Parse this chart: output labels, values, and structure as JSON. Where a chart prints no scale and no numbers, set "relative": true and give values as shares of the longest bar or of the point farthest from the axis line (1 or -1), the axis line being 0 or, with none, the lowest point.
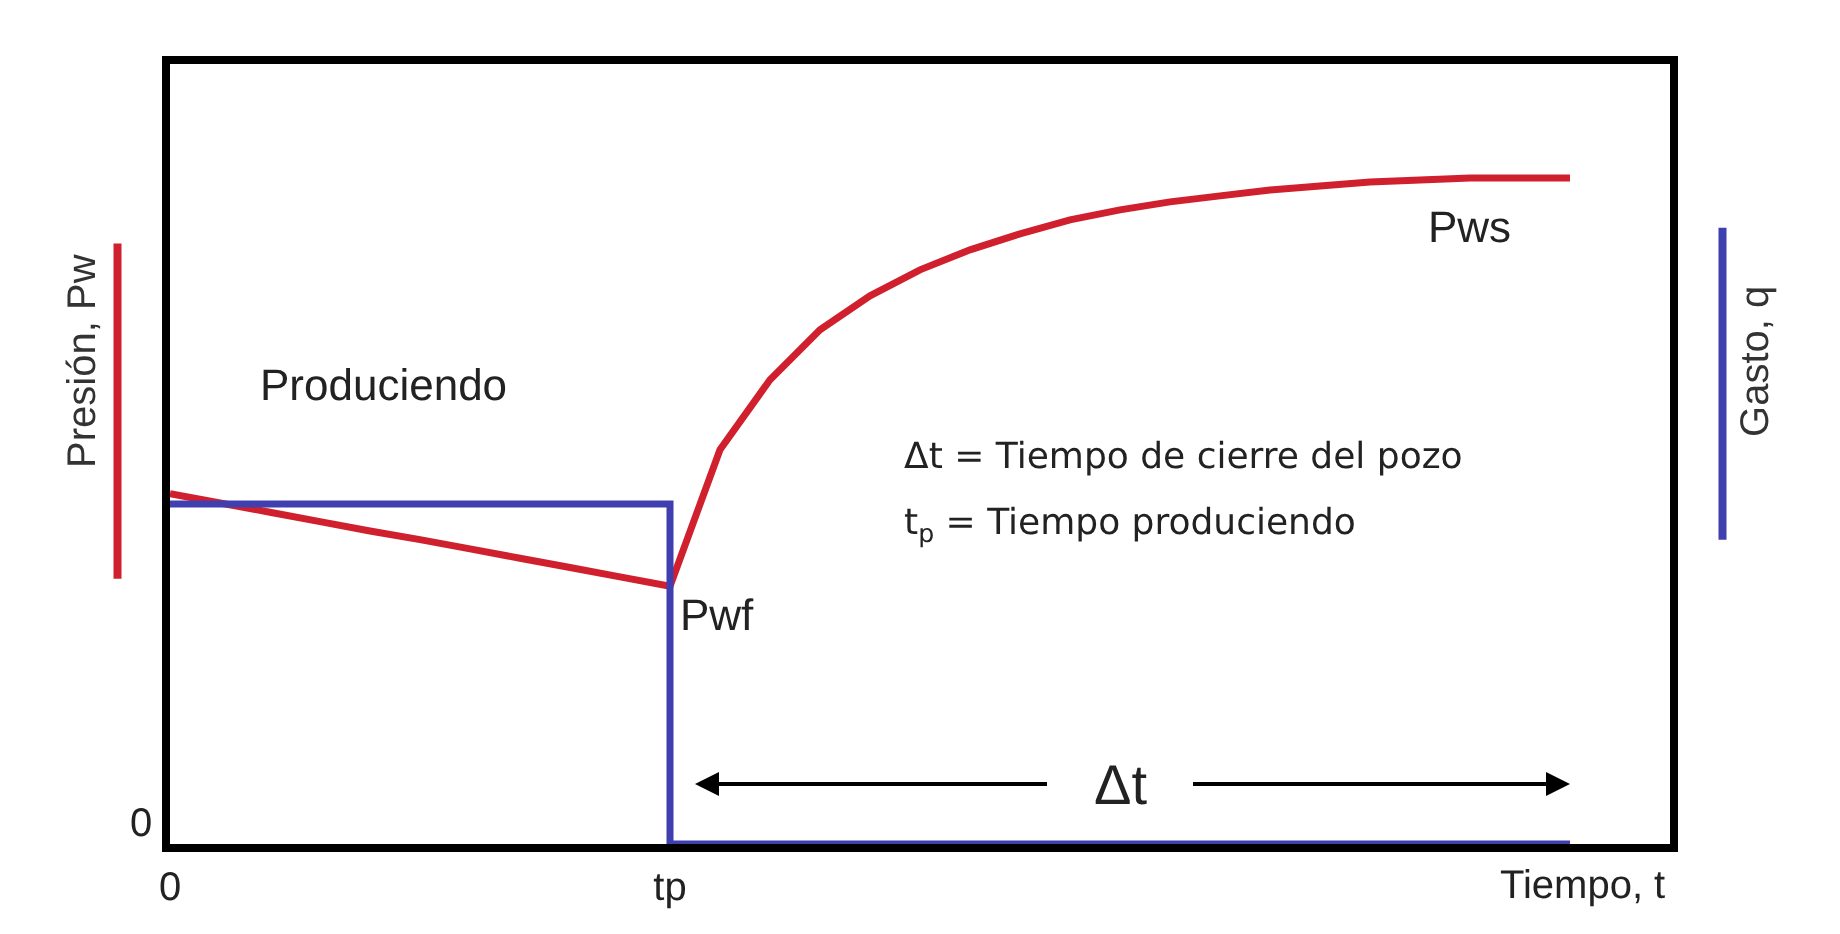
{
  "chart_data": {
    "type": "line",
    "relative": true,
    "xlabel": "Tiempo, t",
    "ylabel": "Presión, Pw",
    "y2label": "Gasto, q",
    "categories": [
      "0",
      null,
      null,
      null,
      null,
      null,
      null,
      null,
      null,
      null,
      "tp",
      null,
      null,
      null,
      null,
      null,
      null,
      null,
      null,
      null,
      null,
      null,
      null,
      null,
      null,
      null,
      null,
      null,
      null,
      null,
      null
    ],
    "series": [
      {
        "color": "#d0202e",
        "values": [
          0.526,
          0.512,
          0.498,
          0.484,
          0.47,
          0.457,
          0.443,
          0.429,
          0.415,
          0.401,
          0.387,
          0.592,
          0.697,
          0.772,
          0.823,
          0.862,
          0.892,
          0.916,
          0.937,
          0.952,
          0.964,
          0.973,
          0.982,
          0.988,
          0.994,
          0.997,
          1,
          1,
          1,
          null,
          null
        ]
      },
      {
        "type": "step",
        "axis": "y2",
        "color": "#3f3fb0",
        "values": [
          1,
          1,
          1,
          1,
          1,
          1,
          1,
          1,
          1,
          1,
          1,
          0,
          0,
          0,
          0,
          0,
          0,
          0,
          0,
          0,
          0,
          0,
          0,
          0,
          0,
          0,
          0,
          0,
          0,
          null,
          null
        ]
      }
    ],
    "annotations": [
      {
        "text": "Produciendo",
        "x": "0",
        "y": 0.526
      },
      {
        "text": "Pws",
        "y": 1
      },
      {
        "text": "Pwf",
        "x": "tp",
        "y": 0.387
      },
      "Δt = Tiempo de cierre del pozo",
      "t$_{p}$ = Tiempo produciendo",
      "Δt",
      "0"
    ],
    "legend": false,
    "marker": "none",
    "line_style": "solid"
  }
}
